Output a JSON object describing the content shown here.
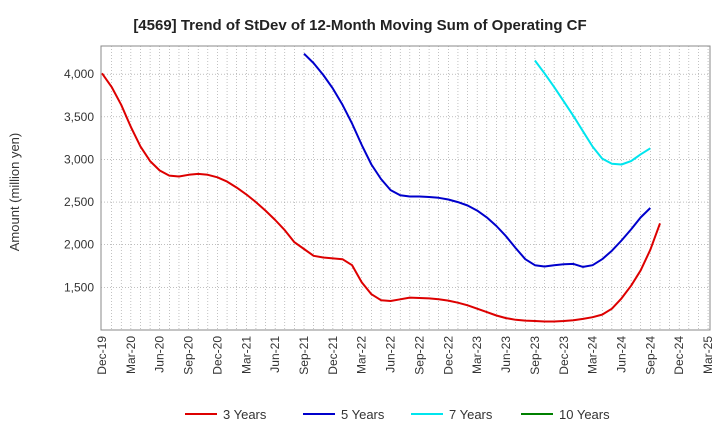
{
  "chart_data": {
    "type": "line",
    "title": "[4569]  Trend of StDev of 12-Month Moving Sum of Operating CF",
    "xlabel": "",
    "ylabel": "Amount (million yen)",
    "x_ticks": [
      "Dec-19",
      "Mar-20",
      "Jun-20",
      "Sep-20",
      "Dec-20",
      "Mar-21",
      "Jun-21",
      "Sep-21",
      "Dec-21",
      "Mar-22",
      "Jun-22",
      "Sep-22",
      "Dec-22",
      "Mar-23",
      "Jun-23",
      "Sep-23",
      "Dec-23",
      "Mar-24",
      "Jun-24",
      "Sep-24",
      "Dec-24",
      "Mar-25"
    ],
    "y_ticks": [
      1500,
      2000,
      2500,
      3000,
      3500,
      4000
    ],
    "y_tick_labels": [
      "1,500",
      "2,000",
      "2,500",
      "3,000",
      "3,500",
      "4,000"
    ],
    "ylim": [
      1000,
      4330
    ],
    "grid": true,
    "legend_position": "bottom",
    "series": [
      {
        "name": "3 Years",
        "color": "#dd0000",
        "start": "Dec-19",
        "values": [
          4010,
          3850,
          3640,
          3380,
          3150,
          2980,
          2870,
          2810,
          2800,
          2820,
          2830,
          2820,
          2790,
          2740,
          2670,
          2590,
          2500,
          2400,
          2290,
          2170,
          2030,
          1950,
          1870,
          1850,
          1840,
          1830,
          1760,
          1560,
          1420,
          1350,
          1340,
          1360,
          1380,
          1375,
          1370,
          1360,
          1345,
          1320,
          1290,
          1250,
          1210,
          1170,
          1140,
          1120,
          1110,
          1105,
          1100,
          1100,
          1105,
          1115,
          1130,
          1150,
          1180,
          1250,
          1370,
          1520,
          1700,
          1940,
          2250
        ]
      },
      {
        "name": "5 Years",
        "color": "#0000cc",
        "start": "Sep-21",
        "values": [
          4240,
          4130,
          3990,
          3830,
          3640,
          3420,
          3170,
          2940,
          2770,
          2640,
          2580,
          2565,
          2565,
          2560,
          2550,
          2530,
          2500,
          2460,
          2400,
          2320,
          2220,
          2100,
          1960,
          1830,
          1760,
          1745,
          1760,
          1770,
          1775,
          1740,
          1760,
          1830,
          1930,
          2050,
          2180,
          2320,
          2430
        ]
      },
      {
        "name": "7 Years",
        "color": "#00e5ee",
        "start": "Sep-23",
        "values": [
          4160,
          4010,
          3850,
          3680,
          3510,
          3330,
          3150,
          3010,
          2950,
          2940,
          2980,
          3060,
          3130
        ]
      },
      {
        "name": "10 Years",
        "color": "#008000",
        "start": "Sep-24",
        "values": []
      }
    ]
  }
}
